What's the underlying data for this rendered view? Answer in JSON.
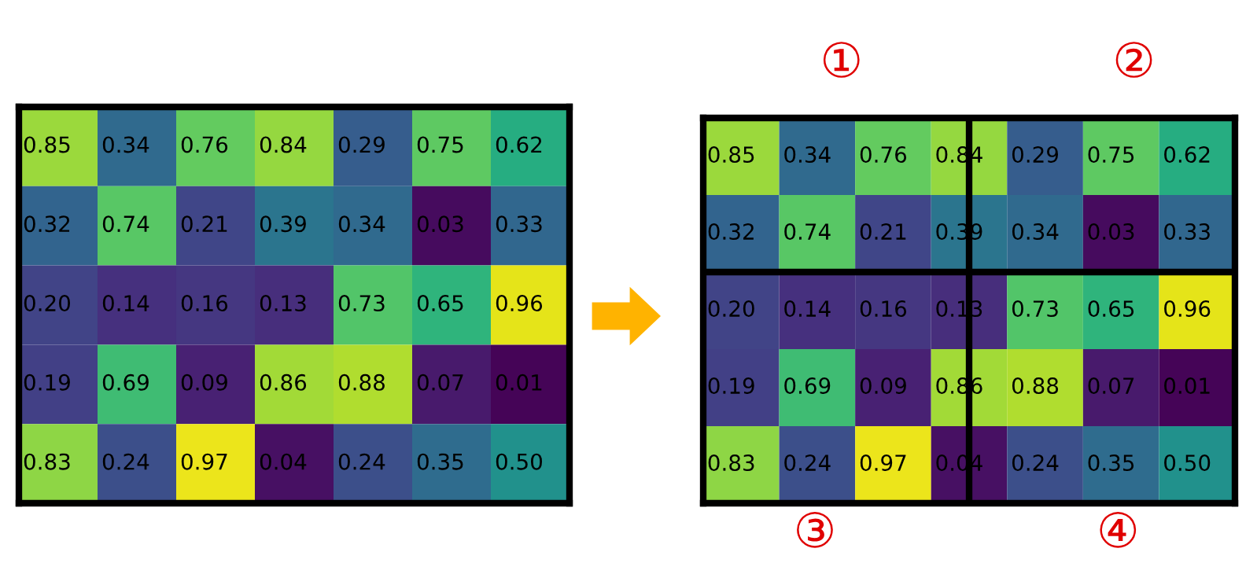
{
  "chart_data": [
    {
      "type": "heatmap",
      "categories": [
        null,
        null,
        null,
        null,
        null,
        null,
        null
      ],
      "y_categories": [
        null,
        null,
        null,
        null,
        null
      ],
      "cells": [
        [
          0.85,
          0.34,
          0.76,
          0.84,
          0.29,
          0.75,
          0.62
        ],
        [
          0.32,
          0.74,
          0.21,
          0.39,
          0.34,
          0.03,
          0.33
        ],
        [
          0.2,
          0.14,
          0.16,
          0.13,
          0.73,
          0.65,
          0.96
        ],
        [
          0.19,
          0.69,
          0.09,
          0.86,
          0.88,
          0.07,
          0.01
        ],
        [
          0.83,
          0.24,
          0.97,
          0.04,
          0.24,
          0.35,
          0.5
        ]
      ],
      "cell_labels": [
        [
          "0.85",
          "0.34",
          "0.76",
          "0.84",
          "0.29",
          "0.75",
          "0.62"
        ],
        [
          "0.32",
          "0.74",
          "0.21",
          "0.39",
          "0.34",
          "0.03",
          "0.33"
        ],
        [
          "0.20",
          "0.14",
          "0.16",
          "0.13",
          "0.73",
          "0.65",
          "0.96"
        ],
        [
          "0.19",
          "0.69",
          "0.09",
          "0.86",
          "0.88",
          "0.07",
          "0.01"
        ],
        [
          "0.83",
          "0.24",
          "0.97",
          "0.04",
          "0.24",
          "0.35",
          "0.50"
        ]
      ]
    },
    {
      "type": "heatmap",
      "categories": [
        null,
        null,
        null,
        null,
        null,
        null,
        null
      ],
      "y_categories": [
        null,
        null,
        null,
        null,
        null
      ],
      "cells": [
        [
          0.85,
          0.34,
          0.76,
          0.84,
          0.29,
          0.75,
          0.62
        ],
        [
          0.32,
          0.74,
          0.21,
          0.39,
          0.34,
          0.03,
          0.33
        ],
        [
          0.2,
          0.14,
          0.16,
          0.13,
          0.73,
          0.65,
          0.96
        ],
        [
          0.19,
          0.69,
          0.09,
          0.86,
          0.88,
          0.07,
          0.01
        ],
        [
          0.83,
          0.24,
          0.97,
          0.04,
          0.24,
          0.35,
          0.5
        ]
      ],
      "cell_labels": [
        [
          "0.85",
          "0.34",
          "0.76",
          "0.84",
          "0.29",
          "0.75",
          "0.62"
        ],
        [
          "0.32",
          "0.74",
          "0.21",
          "0.39",
          "0.34",
          "0.03",
          "0.33"
        ],
        [
          "0.20",
          "0.14",
          "0.16",
          "0.13",
          "0.73",
          "0.65",
          "0.96"
        ],
        [
          "0.19",
          "0.69",
          "0.09",
          "0.86",
          "0.88",
          "0.07",
          "0.01"
        ],
        [
          "0.83",
          "0.24",
          "0.97",
          "0.04",
          "0.24",
          "0.35",
          "0.50"
        ]
      ],
      "annotations": [
        "①",
        "②",
        "③",
        "④"
      ]
    }
  ]
}
